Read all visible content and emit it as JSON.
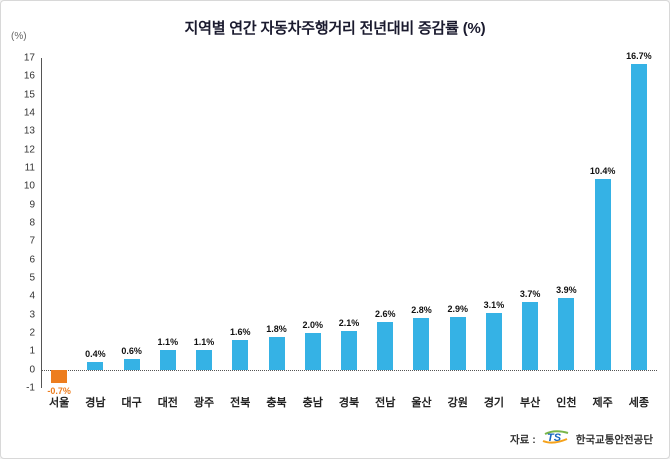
{
  "title": "지역별 연간 자동차주행거리 전년대비 증감률 (%)",
  "y_axis_unit_label": "(%)",
  "source": {
    "prefix": "자료 :",
    "logo_text": "TS",
    "name": "한국교통안전공단"
  },
  "chart_data": {
    "type": "bar",
    "title": "지역별 연간 자동차주행거리 전년대비 증감률 (%)",
    "categories": [
      "서울",
      "경남",
      "대구",
      "대전",
      "광주",
      "전북",
      "충북",
      "충남",
      "경북",
      "전남",
      "울산",
      "강원",
      "경기",
      "부산",
      "인천",
      "제주",
      "세종"
    ],
    "values": [
      -0.7,
      0.4,
      0.6,
      1.1,
      1.1,
      1.6,
      1.8,
      2.0,
      2.1,
      2.6,
      2.8,
      2.9,
      3.1,
      3.7,
      3.9,
      10.4,
      16.7
    ],
    "labels": [
      "-0.7%",
      "0.4%",
      "0.6%",
      "1.1%",
      "1.1%",
      "1.6%",
      "1.8%",
      "2.0%",
      "2.1%",
      "2.6%",
      "2.8%",
      "2.9%",
      "3.1%",
      "3.7%",
      "3.9%",
      "10.4%",
      "16.7%"
    ],
    "xlabel": "",
    "ylabel": "(%)",
    "ylim": [
      -1,
      17
    ],
    "y_ticks": [
      -1,
      0,
      1,
      2,
      3,
      4,
      5,
      6,
      7,
      8,
      9,
      10,
      11,
      12,
      13,
      14,
      15,
      16,
      17
    ],
    "grid": "zero-line-dotted-only",
    "legend": "none",
    "bar_color": "#35b2e5",
    "negative_bar_color": "#ed7d1e",
    "negative_label_color": "#ed7d1e"
  }
}
